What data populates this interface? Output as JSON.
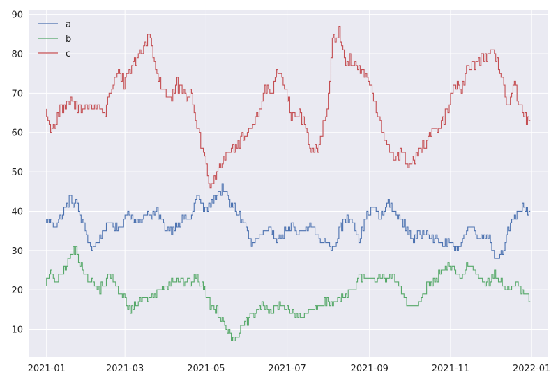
{
  "chart_data": {
    "type": "line",
    "title": "",
    "xlabel": "",
    "ylabel": "",
    "x_range": [
      "2021-01-01",
      "2021-12-31"
    ],
    "xlim": [
      "2020-12-19",
      "2022-01-13"
    ],
    "ylim": [
      3,
      91
    ],
    "grid": true,
    "legend": {
      "placement": "top-left",
      "entries": [
        "a",
        "b",
        "c"
      ]
    },
    "x_ticks": [
      "2021-01",
      "2021-03",
      "2021-05",
      "2021-07",
      "2021-09",
      "2021-11",
      "2022-01"
    ],
    "y_ticks": [
      10,
      20,
      30,
      40,
      50,
      60,
      70,
      80,
      90
    ],
    "series": [
      {
        "name": "a",
        "color": "#4c72b0",
        "anchors": [
          [
            "2021-01-01",
            37.5
          ],
          [
            "2021-01-05",
            37
          ],
          [
            "2021-01-10",
            37
          ],
          [
            "2021-01-15",
            40
          ],
          [
            "2021-01-19",
            43
          ],
          [
            "2021-01-24",
            42
          ],
          [
            "2021-02-01",
            34
          ],
          [
            "2021-02-05",
            30
          ],
          [
            "2021-02-10",
            33
          ],
          [
            "2021-02-15",
            36
          ],
          [
            "2021-02-20",
            37
          ],
          [
            "2021-02-25",
            35
          ],
          [
            "2021-03-01",
            38
          ],
          [
            "2021-03-05",
            40
          ],
          [
            "2021-03-10",
            37
          ],
          [
            "2021-03-14",
            38
          ],
          [
            "2021-03-18",
            40
          ],
          [
            "2021-03-22",
            38
          ],
          [
            "2021-03-26",
            40
          ],
          [
            "2021-04-01",
            36
          ],
          [
            "2021-04-05",
            35
          ],
          [
            "2021-04-10",
            37
          ],
          [
            "2021-04-15",
            38
          ],
          [
            "2021-04-20",
            38
          ],
          [
            "2021-04-25",
            44
          ],
          [
            "2021-05-01",
            40
          ],
          [
            "2021-05-05",
            42
          ],
          [
            "2021-05-10",
            44
          ],
          [
            "2021-05-15",
            46
          ],
          [
            "2021-05-20",
            42
          ],
          [
            "2021-05-25",
            40
          ],
          [
            "2021-06-01",
            36
          ],
          [
            "2021-06-05",
            31
          ],
          [
            "2021-06-10",
            33
          ],
          [
            "2021-06-15",
            34
          ],
          [
            "2021-06-20",
            35
          ],
          [
            "2021-06-25",
            33
          ],
          [
            "2021-07-01",
            35
          ],
          [
            "2021-07-05",
            36
          ],
          [
            "2021-07-10",
            34
          ],
          [
            "2021-07-15",
            35
          ],
          [
            "2021-07-20",
            37
          ],
          [
            "2021-07-25",
            33
          ],
          [
            "2021-08-01",
            32
          ],
          [
            "2021-08-05",
            30
          ],
          [
            "2021-08-10",
            35
          ],
          [
            "2021-08-15",
            38
          ],
          [
            "2021-08-20",
            38
          ],
          [
            "2021-08-25",
            33
          ],
          [
            "2021-09-01",
            40
          ],
          [
            "2021-09-05",
            41
          ],
          [
            "2021-09-10",
            38
          ],
          [
            "2021-09-15",
            42
          ],
          [
            "2021-09-20",
            40
          ],
          [
            "2021-09-25",
            38
          ],
          [
            "2021-10-01",
            35
          ],
          [
            "2021-10-05",
            33
          ],
          [
            "2021-10-10",
            34
          ],
          [
            "2021-10-15",
            35
          ],
          [
            "2021-10-20",
            33
          ],
          [
            "2021-10-25",
            32
          ],
          [
            "2021-11-01",
            32
          ],
          [
            "2021-11-05",
            30
          ],
          [
            "2021-11-10",
            32
          ],
          [
            "2021-11-15",
            36
          ],
          [
            "2021-11-20",
            35
          ],
          [
            "2021-11-25",
            33
          ],
          [
            "2021-12-01",
            34
          ],
          [
            "2021-12-05",
            28
          ],
          [
            "2021-12-10",
            29
          ],
          [
            "2021-12-15",
            35
          ],
          [
            "2021-12-20",
            38
          ],
          [
            "2021-12-25",
            41
          ],
          [
            "2021-12-31",
            40
          ]
        ]
      },
      {
        "name": "b",
        "color": "#55a868",
        "anchors": [
          [
            "2021-01-01",
            22
          ],
          [
            "2021-01-05",
            24
          ],
          [
            "2021-01-10",
            22
          ],
          [
            "2021-01-15",
            25
          ],
          [
            "2021-01-20",
            29
          ],
          [
            "2021-01-24",
            30
          ],
          [
            "2021-02-01",
            23
          ],
          [
            "2021-02-05",
            22
          ],
          [
            "2021-02-10",
            20
          ],
          [
            "2021-02-15",
            22
          ],
          [
            "2021-02-20",
            24
          ],
          [
            "2021-02-25",
            19
          ],
          [
            "2021-03-01",
            18
          ],
          [
            "2021-03-05",
            15
          ],
          [
            "2021-03-10",
            16
          ],
          [
            "2021-03-15",
            18
          ],
          [
            "2021-03-20",
            18
          ],
          [
            "2021-03-25",
            19
          ],
          [
            "2021-04-01",
            21
          ],
          [
            "2021-04-05",
            22
          ],
          [
            "2021-04-10",
            23
          ],
          [
            "2021-04-15",
            22
          ],
          [
            "2021-04-20",
            22
          ],
          [
            "2021-04-25",
            23
          ],
          [
            "2021-05-01",
            20
          ],
          [
            "2021-05-05",
            16
          ],
          [
            "2021-05-10",
            15
          ],
          [
            "2021-05-15",
            12
          ],
          [
            "2021-05-20",
            8
          ],
          [
            "2021-05-25",
            8
          ],
          [
            "2021-06-01",
            12
          ],
          [
            "2021-06-05",
            13
          ],
          [
            "2021-06-10",
            15
          ],
          [
            "2021-06-15",
            16
          ],
          [
            "2021-06-20",
            14
          ],
          [
            "2021-06-25",
            16
          ],
          [
            "2021-07-01",
            16
          ],
          [
            "2021-07-05",
            14
          ],
          [
            "2021-07-10",
            13
          ],
          [
            "2021-07-15",
            13
          ],
          [
            "2021-07-20",
            15
          ],
          [
            "2021-07-25",
            16
          ],
          [
            "2021-08-01",
            17
          ],
          [
            "2021-08-05",
            16
          ],
          [
            "2021-08-10",
            18
          ],
          [
            "2021-08-15",
            19
          ],
          [
            "2021-08-20",
            20
          ],
          [
            "2021-08-25",
            23
          ],
          [
            "2021-09-01",
            23
          ],
          [
            "2021-09-05",
            22
          ],
          [
            "2021-09-10",
            24
          ],
          [
            "2021-09-15",
            23
          ],
          [
            "2021-09-20",
            23
          ],
          [
            "2021-09-25",
            20
          ],
          [
            "2021-10-01",
            17
          ],
          [
            "2021-10-05",
            15
          ],
          [
            "2021-10-10",
            17
          ],
          [
            "2021-10-15",
            21
          ],
          [
            "2021-10-20",
            22
          ],
          [
            "2021-10-25",
            24
          ],
          [
            "2021-11-01",
            26
          ],
          [
            "2021-11-05",
            25
          ],
          [
            "2021-11-10",
            23
          ],
          [
            "2021-11-15",
            27
          ],
          [
            "2021-11-20",
            25
          ],
          [
            "2021-11-25",
            23
          ],
          [
            "2021-12-01",
            22
          ],
          [
            "2021-12-05",
            24
          ],
          [
            "2021-12-10",
            22
          ],
          [
            "2021-12-15",
            20
          ],
          [
            "2021-12-20",
            21
          ],
          [
            "2021-12-25",
            20
          ],
          [
            "2021-12-31",
            18
          ]
        ]
      },
      {
        "name": "c",
        "color": "#c44e52",
        "anchors": [
          [
            "2021-01-01",
            66
          ],
          [
            "2021-01-04",
            61
          ],
          [
            "2021-01-08",
            62
          ],
          [
            "2021-01-12",
            66
          ],
          [
            "2021-01-16",
            66
          ],
          [
            "2021-01-20",
            68
          ],
          [
            "2021-01-25",
            66
          ],
          [
            "2021-02-01",
            67
          ],
          [
            "2021-02-05",
            66
          ],
          [
            "2021-02-10",
            67
          ],
          [
            "2021-02-15",
            65
          ],
          [
            "2021-02-20",
            72
          ],
          [
            "2021-02-25",
            76
          ],
          [
            "2021-03-01",
            72
          ],
          [
            "2021-03-05",
            75
          ],
          [
            "2021-03-10",
            78
          ],
          [
            "2021-03-15",
            80
          ],
          [
            "2021-03-20",
            86
          ],
          [
            "2021-03-25",
            76
          ],
          [
            "2021-04-01",
            70
          ],
          [
            "2021-04-05",
            68
          ],
          [
            "2021-04-10",
            72
          ],
          [
            "2021-04-15",
            69
          ],
          [
            "2021-04-20",
            70
          ],
          [
            "2021-04-25",
            62
          ],
          [
            "2021-05-01",
            53
          ],
          [
            "2021-05-05",
            47
          ],
          [
            "2021-05-10",
            50
          ],
          [
            "2021-05-15",
            54
          ],
          [
            "2021-05-20",
            56
          ],
          [
            "2021-05-25",
            57
          ],
          [
            "2021-06-01",
            59
          ],
          [
            "2021-06-05",
            62
          ],
          [
            "2021-06-10",
            64
          ],
          [
            "2021-06-15",
            72
          ],
          [
            "2021-06-20",
            70
          ],
          [
            "2021-06-25",
            75
          ],
          [
            "2021-07-01",
            72
          ],
          [
            "2021-07-05",
            64
          ],
          [
            "2021-07-10",
            65
          ],
          [
            "2021-07-15",
            62
          ],
          [
            "2021-07-20",
            56
          ],
          [
            "2021-07-25",
            56
          ],
          [
            "2021-08-01",
            66
          ],
          [
            "2021-08-05",
            83
          ],
          [
            "2021-08-10",
            86
          ],
          [
            "2021-08-15",
            78
          ],
          [
            "2021-08-20",
            78
          ],
          [
            "2021-08-25",
            76
          ],
          [
            "2021-09-01",
            74
          ],
          [
            "2021-09-05",
            68
          ],
          [
            "2021-09-10",
            62
          ],
          [
            "2021-09-15",
            56
          ],
          [
            "2021-09-20",
            54
          ],
          [
            "2021-09-25",
            55
          ],
          [
            "2021-10-01",
            52
          ],
          [
            "2021-10-05",
            53
          ],
          [
            "2021-10-10",
            55
          ],
          [
            "2021-10-15",
            58
          ],
          [
            "2021-10-20",
            60
          ],
          [
            "2021-10-25",
            61
          ],
          [
            "2021-11-01",
            67
          ],
          [
            "2021-11-05",
            72
          ],
          [
            "2021-11-10",
            71
          ],
          [
            "2021-11-15",
            76
          ],
          [
            "2021-11-20",
            78
          ],
          [
            "2021-11-25",
            79
          ],
          [
            "2021-12-01",
            79
          ],
          [
            "2021-12-05",
            80
          ],
          [
            "2021-12-10",
            75
          ],
          [
            "2021-12-15",
            66
          ],
          [
            "2021-12-20",
            72
          ],
          [
            "2021-12-25",
            65
          ],
          [
            "2021-12-31",
            62
          ]
        ]
      }
    ]
  }
}
